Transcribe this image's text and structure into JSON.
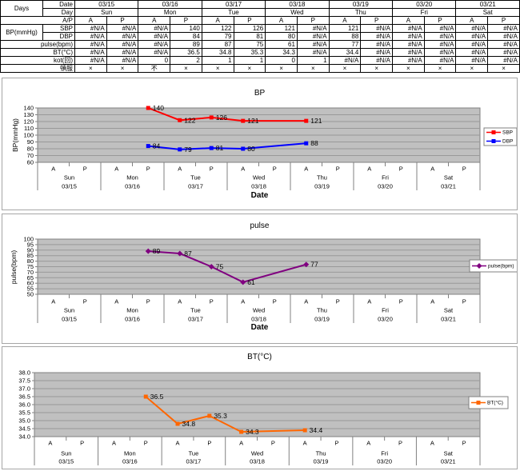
{
  "table": {
    "corner": "Days",
    "date_label": "Date",
    "day_label": "Day",
    "ap_label": "A/P",
    "bp_group_label": "BP(mmHg)",
    "dates": [
      "03/15",
      "03/16",
      "03/17",
      "03/18",
      "03/19",
      "03/20",
      "03/21"
    ],
    "days": [
      "Sun",
      "Mon",
      "Tue",
      "Wed",
      "Thu",
      "Fri",
      "Sat"
    ],
    "ap": [
      "A",
      "P"
    ],
    "data_rows": [
      {
        "id": "sbp",
        "label": "SBP",
        "group": "bp",
        "values": [
          "#N/A",
          "#N/A",
          "#N/A",
          "140",
          "122",
          "126",
          "121",
          "#N/A",
          "121",
          "#N/A",
          "#N/A",
          "#N/A",
          "#N/A",
          "#N/A"
        ]
      },
      {
        "id": "dbp",
        "label": "DBP",
        "group": "bp",
        "values": [
          "#N/A",
          "#N/A",
          "#N/A",
          "84",
          "79",
          "81",
          "80",
          "#N/A",
          "88",
          "#N/A",
          "#N/A",
          "#N/A",
          "#N/A",
          "#N/A"
        ]
      },
      {
        "id": "pulse",
        "label": "pulse(bpm)",
        "values": [
          "#N/A",
          "#N/A",
          "#N/A",
          "89",
          "87",
          "75",
          "61",
          "#N/A",
          "77",
          "#N/A",
          "#N/A",
          "#N/A",
          "#N/A",
          "#N/A"
        ]
      },
      {
        "id": "bt",
        "label": "BT(°C)",
        "values": [
          "#N/A",
          "#N/A",
          "#N/A",
          "36.5",
          "34.8",
          "35.3",
          "34.3",
          "#N/A",
          "34.4",
          "#N/A",
          "#N/A",
          "#N/A",
          "#N/A",
          "#N/A"
        ]
      },
      {
        "id": "kot",
        "label": "kot(回)",
        "values": [
          "#N/A",
          "#N/A",
          "0",
          "2",
          "1",
          "1",
          "0",
          "1",
          "#N/A",
          "#N/A",
          "#N/A",
          "#N/A",
          "#N/A",
          "#N/A"
        ]
      },
      {
        "id": "tonpuku",
        "label": "頓服",
        "center": true,
        "values": [
          "×",
          "×",
          "不",
          "×",
          "×",
          "×",
          "×",
          "×",
          "×",
          "×",
          "×",
          "×",
          "×",
          "×"
        ]
      }
    ]
  },
  "chart_data": [
    {
      "type": "line",
      "title": "BP",
      "ylabel": "BP(mmHg)",
      "xlabel": "Date",
      "ylim": [
        60,
        140
      ],
      "yticks": [
        "140",
        "130",
        "120",
        "110",
        "100",
        "90",
        "80",
        "70",
        "60"
      ],
      "grid": true,
      "legend_position": "right",
      "plot_bg": "#c0c0c0",
      "slots": 14,
      "ap_labels": [
        "A",
        "P"
      ],
      "days": [
        "Sun",
        "Mon",
        "Tue",
        "Wed",
        "Thu",
        "Fri",
        "Sat"
      ],
      "dates": [
        "03/15",
        "03/16",
        "03/17",
        "03/18",
        "03/19",
        "03/20",
        "03/21"
      ],
      "series": [
        {
          "name": "SBP",
          "color": "#ff0000",
          "marker": "square",
          "points": [
            {
              "slot": 3,
              "value": 140,
              "label": "140"
            },
            {
              "slot": 4,
              "value": 122,
              "label": "122"
            },
            {
              "slot": 5,
              "value": 126,
              "label": "126"
            },
            {
              "slot": 6,
              "value": 121,
              "label": "121"
            },
            {
              "slot": 8,
              "value": 121,
              "label": "121"
            }
          ]
        },
        {
          "name": "DBP",
          "color": "#0000ff",
          "marker": "square",
          "points": [
            {
              "slot": 3,
              "value": 84,
              "label": "84"
            },
            {
              "slot": 4,
              "value": 79,
              "label": "79"
            },
            {
              "slot": 5,
              "value": 81,
              "label": "81"
            },
            {
              "slot": 6,
              "value": 80,
              "label": "80"
            },
            {
              "slot": 8,
              "value": 88,
              "label": "88"
            }
          ]
        }
      ]
    },
    {
      "type": "line",
      "title": "pulse",
      "ylabel": "pulse(bpm)",
      "xlabel": "Date",
      "ylim": [
        50,
        100
      ],
      "yticks": [
        "100",
        "95",
        "90",
        "85",
        "80",
        "75",
        "70",
        "65",
        "60",
        "55",
        "50"
      ],
      "grid": true,
      "legend_position": "right",
      "plot_bg": "#c0c0c0",
      "slots": 14,
      "ap_labels": [
        "A",
        "P"
      ],
      "days": [
        "Sun",
        "Mon",
        "Tue",
        "Wed",
        "Thu",
        "Fri",
        "Sat"
      ],
      "dates": [
        "03/15",
        "03/16",
        "03/17",
        "03/18",
        "03/19",
        "03/20",
        "03/21"
      ],
      "series": [
        {
          "name": "pulse(bpm)",
          "color": "#800080",
          "marker": "diamond",
          "points": [
            {
              "slot": 3,
              "value": 89,
              "label": "89"
            },
            {
              "slot": 4,
              "value": 87,
              "label": "87"
            },
            {
              "slot": 5,
              "value": 75,
              "label": "75"
            },
            {
              "slot": 6,
              "value": 61,
              "label": "61"
            },
            {
              "slot": 8,
              "value": 77,
              "label": "77"
            }
          ]
        }
      ]
    },
    {
      "type": "line",
      "title": "BT(°C)",
      "ylim": [
        34.0,
        38.0
      ],
      "yticks": [
        "38.0",
        "37.5",
        "37.0",
        "36.5",
        "36.0",
        "35.5",
        "35.0",
        "34.5",
        "34.0"
      ],
      "grid": true,
      "legend_position": "right",
      "plot_bg": "#c0c0c0",
      "slots": 14,
      "ap_labels": [
        "A",
        "P"
      ],
      "days": [
        "Sun",
        "Mon",
        "Tue",
        "Wed",
        "Thu",
        "Fri",
        "Sat"
      ],
      "dates": [
        "03/15",
        "03/16",
        "03/17",
        "03/18",
        "03/19",
        "03/20",
        "03/21"
      ],
      "series": [
        {
          "name": "BT(°C)",
          "color": "#ff6600",
          "marker": "square",
          "points": [
            {
              "slot": 3,
              "value": 36.5,
              "label": "36.5"
            },
            {
              "slot": 4,
              "value": 34.8,
              "label": "34.8"
            },
            {
              "slot": 5,
              "value": 35.3,
              "label": "35.3"
            },
            {
              "slot": 6,
              "value": 34.3,
              "label": "34.3"
            },
            {
              "slot": 8,
              "value": 34.4,
              "label": "34.4"
            }
          ]
        }
      ]
    }
  ]
}
